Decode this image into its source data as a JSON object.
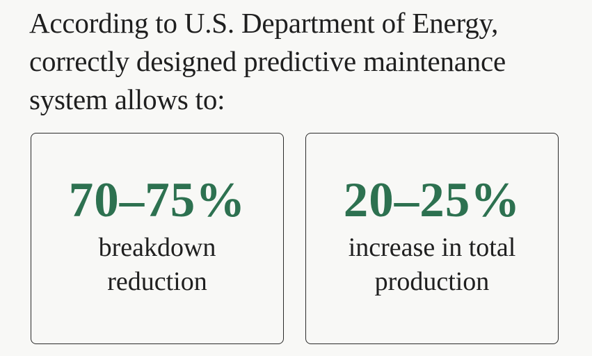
{
  "intro": {
    "line1": "According to U.S. Department of Energy,",
    "line2": "correctly designed predictive maintenance",
    "line3": "system allows to:"
  },
  "stats": [
    {
      "value": "70–75%",
      "desc_line1": "breakdown",
      "desc_line2": "reduction"
    },
    {
      "value": "20–25%",
      "desc_line1": "increase in total",
      "desc_line2": "production"
    }
  ],
  "colors": {
    "accent": "#2d7150",
    "text": "#1f1f1f",
    "background": "#f8f8f6"
  }
}
